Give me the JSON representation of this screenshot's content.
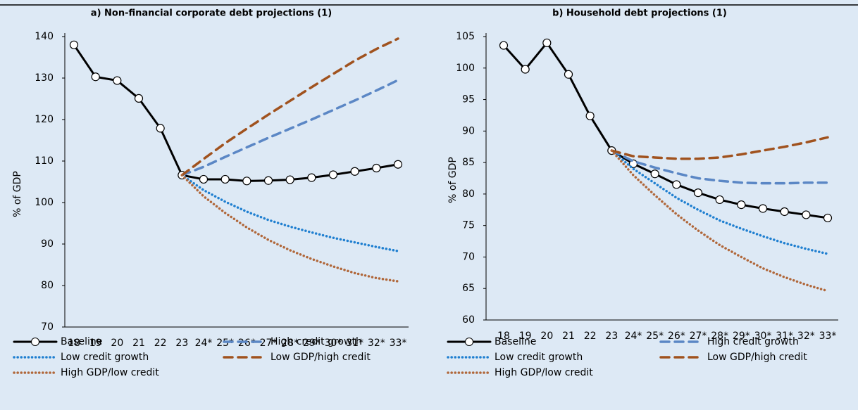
{
  "chart_data": [
    {
      "type": "line",
      "title": "a) Non-financial corporate debt projections (1)",
      "y_label": "% of GDP",
      "categories": [
        "18",
        "19",
        "20",
        "21",
        "22",
        "23",
        "24*",
        "25*",
        "26*",
        "27*",
        "28*",
        "29*",
        "30*",
        "31*",
        "32*",
        "33*"
      ],
      "ylim": [
        70,
        140
      ],
      "yticks": [
        70,
        80,
        90,
        100,
        110,
        120,
        130,
        140
      ],
      "grid": false,
      "legend": "bottom",
      "series": [
        {
          "name": "Baseline",
          "color": "#000000",
          "style": "solid",
          "markers": true,
          "values": [
            138,
            130.3,
            129.4,
            125.1,
            117.9,
            106.6,
            105.6,
            105.6,
            105.2,
            105.3,
            105.5,
            106,
            106.7,
            107.5,
            108.3,
            109.2
          ]
        },
        {
          "name": "High credit growth",
          "color": "#5b87c5",
          "style": "dashed",
          "markers": false,
          "values": [
            null,
            null,
            null,
            null,
            null,
            106.6,
            108.6,
            111,
            113.3,
            115.6,
            117.8,
            120,
            122.3,
            124.6,
            127,
            129.5
          ]
        },
        {
          "name": "Low credit growth",
          "color": "#1f7fd0",
          "style": "dotted",
          "markers": false,
          "values": [
            null,
            null,
            null,
            null,
            null,
            106.6,
            103,
            100.2,
            97.8,
            95.8,
            94.2,
            92.8,
            91.5,
            90.4,
            89.3,
            88.3
          ]
        },
        {
          "name": "Low GDP/high credit",
          "color": "#a0521e",
          "style": "dashed",
          "markers": false,
          "values": [
            null,
            null,
            null,
            null,
            null,
            106.6,
            110.5,
            114.3,
            117.8,
            121.2,
            124.5,
            127.8,
            131,
            134.2,
            137,
            139.5
          ]
        },
        {
          "name": "High GDP/low credit",
          "color": "#b0673a",
          "style": "dotted",
          "markers": false,
          "values": [
            null,
            null,
            null,
            null,
            null,
            106.6,
            101.5,
            97.5,
            94,
            91,
            88.5,
            86.4,
            84.6,
            83,
            81.8,
            81
          ]
        }
      ]
    },
    {
      "type": "line",
      "title": "b) Household debt projections (1)",
      "y_label": "% of GDP",
      "categories": [
        "18",
        "19",
        "20",
        "21",
        "22",
        "23",
        "24*",
        "25*",
        "26*",
        "27*",
        "28*",
        "29*",
        "30*",
        "31*",
        "32*",
        "33*"
      ],
      "ylim": [
        60,
        105
      ],
      "yticks": [
        60,
        65,
        70,
        75,
        80,
        85,
        90,
        95,
        100,
        105
      ],
      "grid": false,
      "legend": "bottom",
      "series": [
        {
          "name": "Baseline",
          "color": "#000000",
          "style": "solid",
          "markers": true,
          "values": [
            103.6,
            99.8,
            104,
            99,
            92.4,
            86.9,
            84.8,
            83.2,
            81.5,
            80.2,
            79.1,
            78.3,
            77.7,
            77.2,
            76.7,
            76.2
          ]
        },
        {
          "name": "High credit growth",
          "color": "#5b87c5",
          "style": "dashed",
          "markers": false,
          "values": [
            null,
            null,
            null,
            null,
            null,
            86.9,
            85.2,
            84.2,
            83.3,
            82.5,
            82.1,
            81.8,
            81.7,
            81.7,
            81.8,
            81.8
          ]
        },
        {
          "name": "Low credit growth",
          "color": "#1f7fd0",
          "style": "dotted",
          "markers": false,
          "values": [
            null,
            null,
            null,
            null,
            null,
            86.9,
            84,
            81.7,
            79.4,
            77.5,
            75.8,
            74.5,
            73.3,
            72.2,
            71.3,
            70.5
          ]
        },
        {
          "name": "Low GDP/high credit",
          "color": "#a0521e",
          "style": "dashed",
          "markers": false,
          "values": [
            null,
            null,
            null,
            null,
            null,
            86.9,
            86,
            85.8,
            85.6,
            85.6,
            85.8,
            86.3,
            86.9,
            87.5,
            88.2,
            89
          ]
        },
        {
          "name": "High GDP/low credit",
          "color": "#b0673a",
          "style": "dotted",
          "markers": false,
          "values": [
            null,
            null,
            null,
            null,
            null,
            86.9,
            83,
            79.8,
            76.8,
            74.2,
            71.9,
            70,
            68.2,
            66.8,
            65.6,
            64.6
          ]
        }
      ]
    }
  ]
}
